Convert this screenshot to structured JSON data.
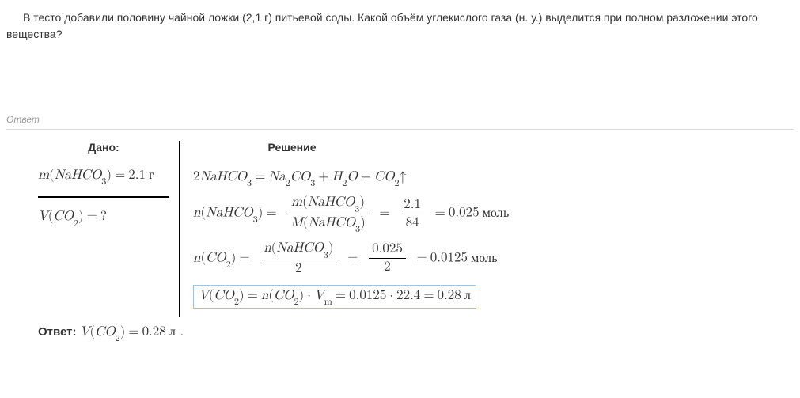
{
  "problem": {
    "text": "В тесто добавили половину чайной ложки (2,1 г) питьевой соды. Какой объём углекислого газа (н. у.) выделится при полном разложении этого вещества?"
  },
  "labels": {
    "answer_section": "Ответ",
    "given": "Дано:",
    "solution": "Решение",
    "final_prefix": "Ответ:"
  },
  "given": {
    "mass_expr_var": "m",
    "mass_formula": "NaHCO",
    "mass_sub": "3",
    "mass_val": "2.1",
    "mass_unit": "г",
    "find_var": "V",
    "find_formula": "CO",
    "find_sub": "2",
    "find_q": "?"
  },
  "reaction": {
    "lhs_coeff": "2",
    "lhs": "NaHCO",
    "lhs_sub": "3",
    "r1": "Na",
    "r1s1": "2",
    "r1b": "CO",
    "r1s2": "3",
    "r2": "H",
    "r2s1": "2",
    "r2b": "O",
    "r3": "CO",
    "r3s": "2",
    "arrow": "↑"
  },
  "calc1": {
    "lhs_fn": "n",
    "lhs_arg": "NaHCO",
    "lhs_sub": "3",
    "num_fn": "m",
    "num_arg": "NaHCO",
    "num_sub": "3",
    "den_fn": "M",
    "den_arg": "NaHCO",
    "den_sub": "3",
    "num2": "2.1",
    "den2": "84",
    "result": "0.025",
    "unit": "моль"
  },
  "calc2": {
    "lhs_fn": "n",
    "lhs_arg": "CO",
    "lhs_sub": "2",
    "num_fn": "n",
    "num_arg": "NaHCO",
    "num_sub": "3",
    "den": "2",
    "num2": "0.025",
    "den2": "2",
    "result": "0.0125",
    "unit": "моль"
  },
  "calc3": {
    "lhs_fn": "V",
    "lhs_arg": "CO",
    "lhs_sub": "2",
    "r_fn": "n",
    "r_arg": "CO",
    "r_sub": "2",
    "vm": "V",
    "vm_sub": "m",
    "n_val": "0.0125",
    "vm_val": "22.4",
    "result": "0.28",
    "unit": "л"
  },
  "final": {
    "var": "V",
    "arg": "CO",
    "sub": "2",
    "val": "0.28",
    "unit": "л"
  },
  "colors": {
    "text": "#333333",
    "muted": "#999999",
    "rule": "#dddddd",
    "box_border": "#9ec4df"
  }
}
